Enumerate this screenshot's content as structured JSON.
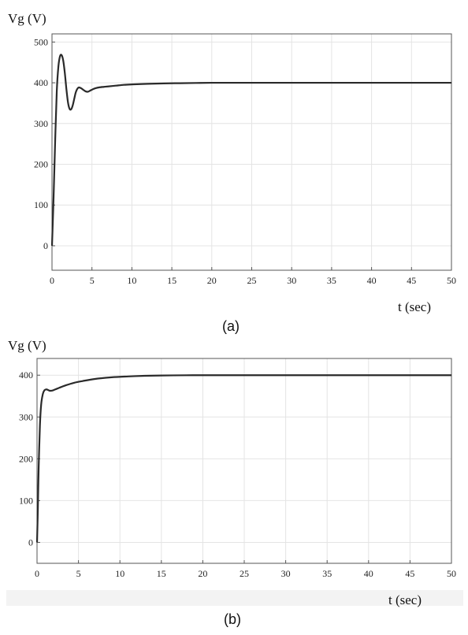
{
  "chart_data": [
    {
      "type": "line",
      "panel": "(a)",
      "ylabel": "Vg (V)",
      "xlabel": "t (sec)",
      "xlim": [
        0,
        50
      ],
      "ylim": [
        -60,
        520
      ],
      "xticks": [
        0,
        5,
        10,
        15,
        20,
        25,
        30,
        35,
        40,
        45,
        50
      ],
      "yticks": [
        0,
        100,
        200,
        300,
        400,
        500
      ],
      "grid": true,
      "series": [
        {
          "color": "#2a2a2a",
          "x": [
            0,
            0.2,
            0.4,
            0.6,
            0.8,
            1.0,
            1.2,
            1.4,
            1.6,
            1.8,
            2.0,
            2.2,
            2.4,
            2.6,
            2.8,
            3.0,
            3.3,
            3.6,
            3.9,
            4.2,
            4.5,
            4.8,
            5.1,
            5.5,
            6.0,
            6.5,
            7.0,
            8,
            9,
            10,
            12,
            14,
            16,
            18,
            20,
            25,
            30,
            40,
            50
          ],
          "y": [
            0,
            120,
            260,
            380,
            440,
            465,
            468,
            455,
            425,
            385,
            352,
            336,
            335,
            345,
            362,
            378,
            388,
            387,
            383,
            379,
            378,
            381,
            384,
            387,
            389,
            390,
            391,
            393,
            395,
            396,
            397.5,
            398.5,
            399,
            399.5,
            400,
            400,
            400,
            400,
            400
          ]
        }
      ],
      "caption": "(a)"
    },
    {
      "type": "line",
      "panel": "(b)",
      "ylabel": "Vg (V)",
      "xlabel": "t (sec)",
      "xlim": [
        0,
        50
      ],
      "ylim": [
        -50,
        440
      ],
      "xticks": [
        0,
        5,
        10,
        15,
        20,
        25,
        30,
        35,
        40,
        45,
        50
      ],
      "yticks": [
        0,
        100,
        200,
        300,
        400
      ],
      "grid": true,
      "series": [
        {
          "color": "#2a2a2a",
          "x": [
            0,
            0.1,
            0.2,
            0.35,
            0.5,
            0.7,
            0.9,
            1.1,
            1.3,
            1.5,
            1.8,
            2.2,
            2.7,
            3.5,
            4.5,
            5.5,
            7,
            9,
            11,
            13,
            15,
            18,
            20,
            25,
            30,
            40,
            50
          ],
          "y": [
            0,
            80,
            180,
            280,
            330,
            355,
            364,
            366,
            365,
            363,
            363,
            366,
            370,
            376,
            382,
            386,
            391,
            395,
            397,
            398.5,
            399.3,
            399.8,
            400,
            400,
            400,
            400,
            400
          ]
        }
      ],
      "caption": "(b)"
    }
  ]
}
